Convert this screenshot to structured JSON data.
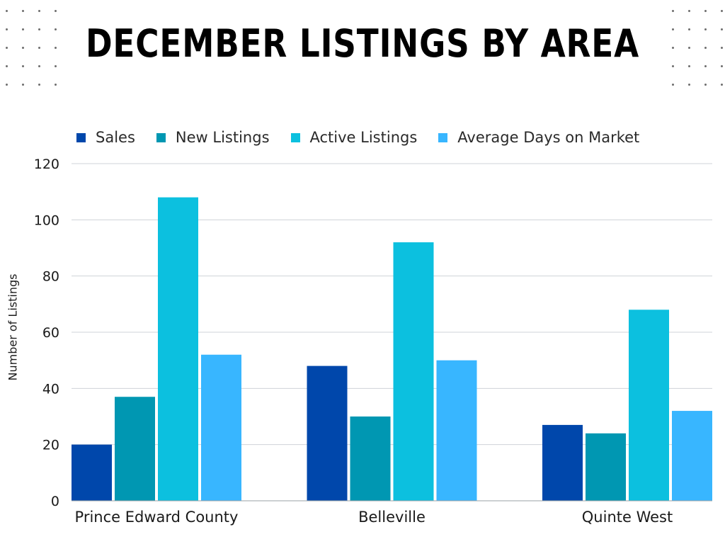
{
  "chart_data": {
    "type": "bar",
    "title": "DECEMBER LISTINGS BY AREA",
    "ylabel": "Number of Listings",
    "xlabel": "",
    "categories": [
      "Prince Edward County",
      "Belleville",
      "Quinte West"
    ],
    "series": [
      {
        "name": "Sales",
        "color": "#0047ab",
        "values": [
          20,
          48,
          27
        ]
      },
      {
        "name": "New Listings",
        "color": "#0097b2",
        "values": [
          37,
          30,
          24
        ]
      },
      {
        "name": "Active Listings",
        "color": "#0cc0df",
        "values": [
          108,
          92,
          68
        ]
      },
      {
        "name": "Average Days on Market",
        "color": "#38b6ff",
        "values": [
          52,
          50,
          32
        ]
      }
    ],
    "ylim": [
      0,
      120
    ],
    "yticks": [
      0,
      20,
      40,
      60,
      80,
      100,
      120
    ],
    "grid": true,
    "legend_position": "top"
  }
}
